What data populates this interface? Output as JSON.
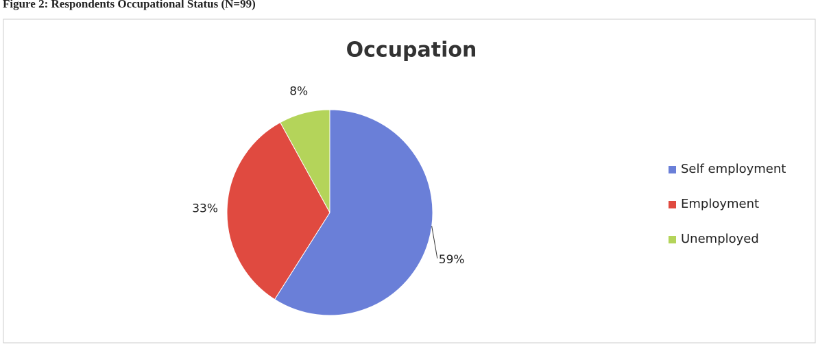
{
  "caption": "Figure 2: Respondents Occupational Status (N=99)",
  "chart_data": {
    "type": "pie",
    "title": "Occupation",
    "categories": [
      "Self employment",
      "Employment",
      "Unemployed"
    ],
    "values": [
      59,
      33,
      8
    ],
    "value_labels": [
      "59%",
      "33%",
      "8%"
    ],
    "colors": [
      "#6a7fd8",
      "#e04a40",
      "#b4d45a"
    ],
    "legend": "right"
  }
}
